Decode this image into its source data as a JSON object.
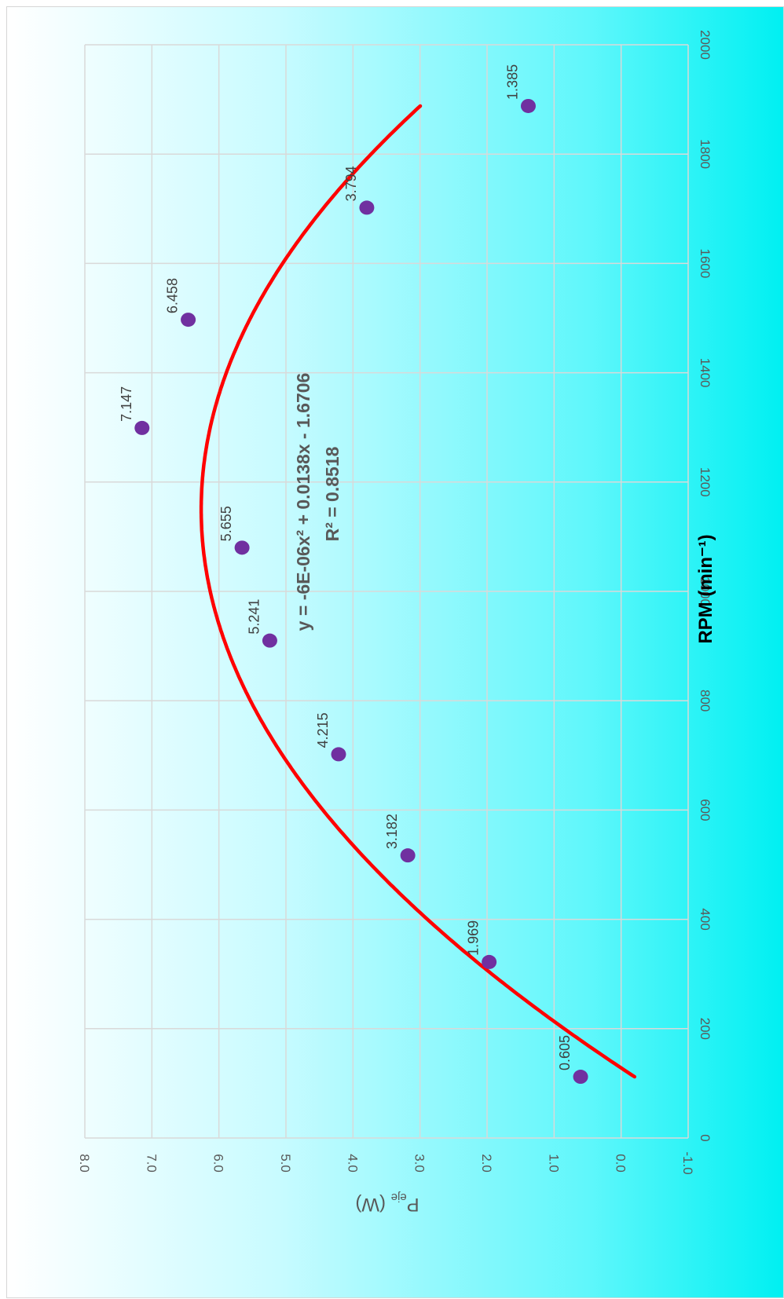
{
  "chart_data": {
    "type": "scatter",
    "orientation": "rotated 90° clockwise",
    "x_axis_title": "RPM (min⁻¹)",
    "y_axis_title": "P",
    "y_axis_title_subscript": "eje",
    "y_axis_title_unit": " (W)",
    "xlim": [
      0,
      2000
    ],
    "ylim": [
      -1.0,
      8.0
    ],
    "x_ticks": [
      0,
      200,
      400,
      600,
      800,
      1000,
      1200,
      1400,
      1600,
      1800,
      2000
    ],
    "y_ticks": [
      8.0,
      7.0,
      6.0,
      5.0,
      4.0,
      3.0,
      2.0,
      1.0,
      0.0,
      -1.0
    ],
    "y_tick_labels": [
      "8.0",
      "7.0",
      "6.0",
      "5.0",
      "4.0",
      "3.0",
      "2.0",
      "1.0",
      "0.0",
      "-1.0"
    ],
    "x_tick_labels": [
      "0",
      "200",
      "400",
      "600",
      "800",
      "1000",
      "1200",
      "1400",
      "1600",
      "1800",
      "2000"
    ],
    "grid": true,
    "series": [
      {
        "marker_color": "#7030a0",
        "points": [
          {
            "x": 112,
            "y": 0.605,
            "label": "0.605"
          },
          {
            "x": 322,
            "y": 1.969,
            "label": "1.969"
          },
          {
            "x": 517,
            "y": 3.182,
            "label": "3.182"
          },
          {
            "x": 702,
            "y": 4.215,
            "label": "4.215"
          },
          {
            "x": 910,
            "y": 5.241,
            "label": "5.241"
          },
          {
            "x": 1080,
            "y": 5.655,
            "label": "5.655"
          },
          {
            "x": 1299,
            "y": 7.147,
            "label": "7.147"
          },
          {
            "x": 1497,
            "y": 6.458,
            "label": "6.458"
          },
          {
            "x": 1702,
            "y": 3.794,
            "label": "3.794"
          },
          {
            "x": 1888,
            "y": 1.385,
            "label": "1.385"
          }
        ]
      }
    ],
    "trendline": {
      "type": "polynomial",
      "color": "#ff0000",
      "equation": "y = -6E-06x² + 0.0138x - 1.6706",
      "r_squared": "R² = 0.8518",
      "coefficients": [
        -6e-06,
        0.0138,
        -1.6706
      ],
      "x_range": [
        112,
        1888
      ]
    }
  }
}
